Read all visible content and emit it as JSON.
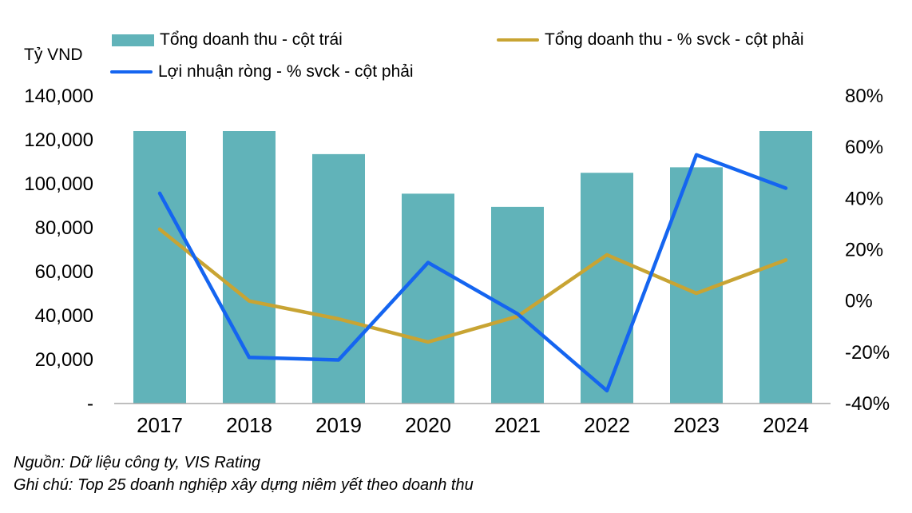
{
  "chart_data": {
    "type": "combo",
    "categories": [
      "2017",
      "2018",
      "2019",
      "2020",
      "2021",
      "2022",
      "2023",
      "2024"
    ],
    "series": [
      {
        "name": "Tổng doanh thu - cột trái",
        "type": "bar",
        "axis": "left",
        "color": "#61b3b9",
        "values": [
          124000,
          124000,
          113500,
          95500,
          89500,
          105000,
          107500,
          124000
        ]
      },
      {
        "name": "Tổng doanh thu - % svck - cột phải",
        "type": "line",
        "axis": "right",
        "color": "#c8a433",
        "values": [
          28,
          0,
          -7,
          -16,
          -6,
          18,
          3,
          16
        ]
      },
      {
        "name": "Lợi nhuận ròng - % svck - cột phải",
        "type": "line",
        "axis": "right",
        "color": "#1565f0",
        "values": [
          42,
          -22,
          -23,
          15,
          -5,
          -35,
          57,
          44
        ]
      }
    ],
    "left_axis": {
      "unit": "Tỷ VND",
      "min": 0,
      "max": 140000,
      "tick_values": [
        0,
        20000,
        40000,
        60000,
        80000,
        100000,
        120000,
        140000
      ],
      "tick_labels": [
        "-",
        "20,000",
        "40,000",
        "60,000",
        "80,000",
        "100,000",
        "120,000",
        "140,000"
      ]
    },
    "right_axis": {
      "min": -40,
      "max": 80,
      "tick_values": [
        -40,
        -20,
        0,
        20,
        40,
        60,
        80
      ],
      "tick_labels": [
        "-40%",
        "-20%",
        "0%",
        "20%",
        "40%",
        "60%",
        "80%"
      ]
    },
    "grid": "off",
    "legend_position": "top",
    "axis_line_color": "#a8a8a8"
  },
  "footer": {
    "source": "Nguồn: Dữ liệu công ty, VIS Rating",
    "note": "Ghi chú: Top 25 doanh nghiệp xây dựng niêm yết theo doanh thu"
  }
}
